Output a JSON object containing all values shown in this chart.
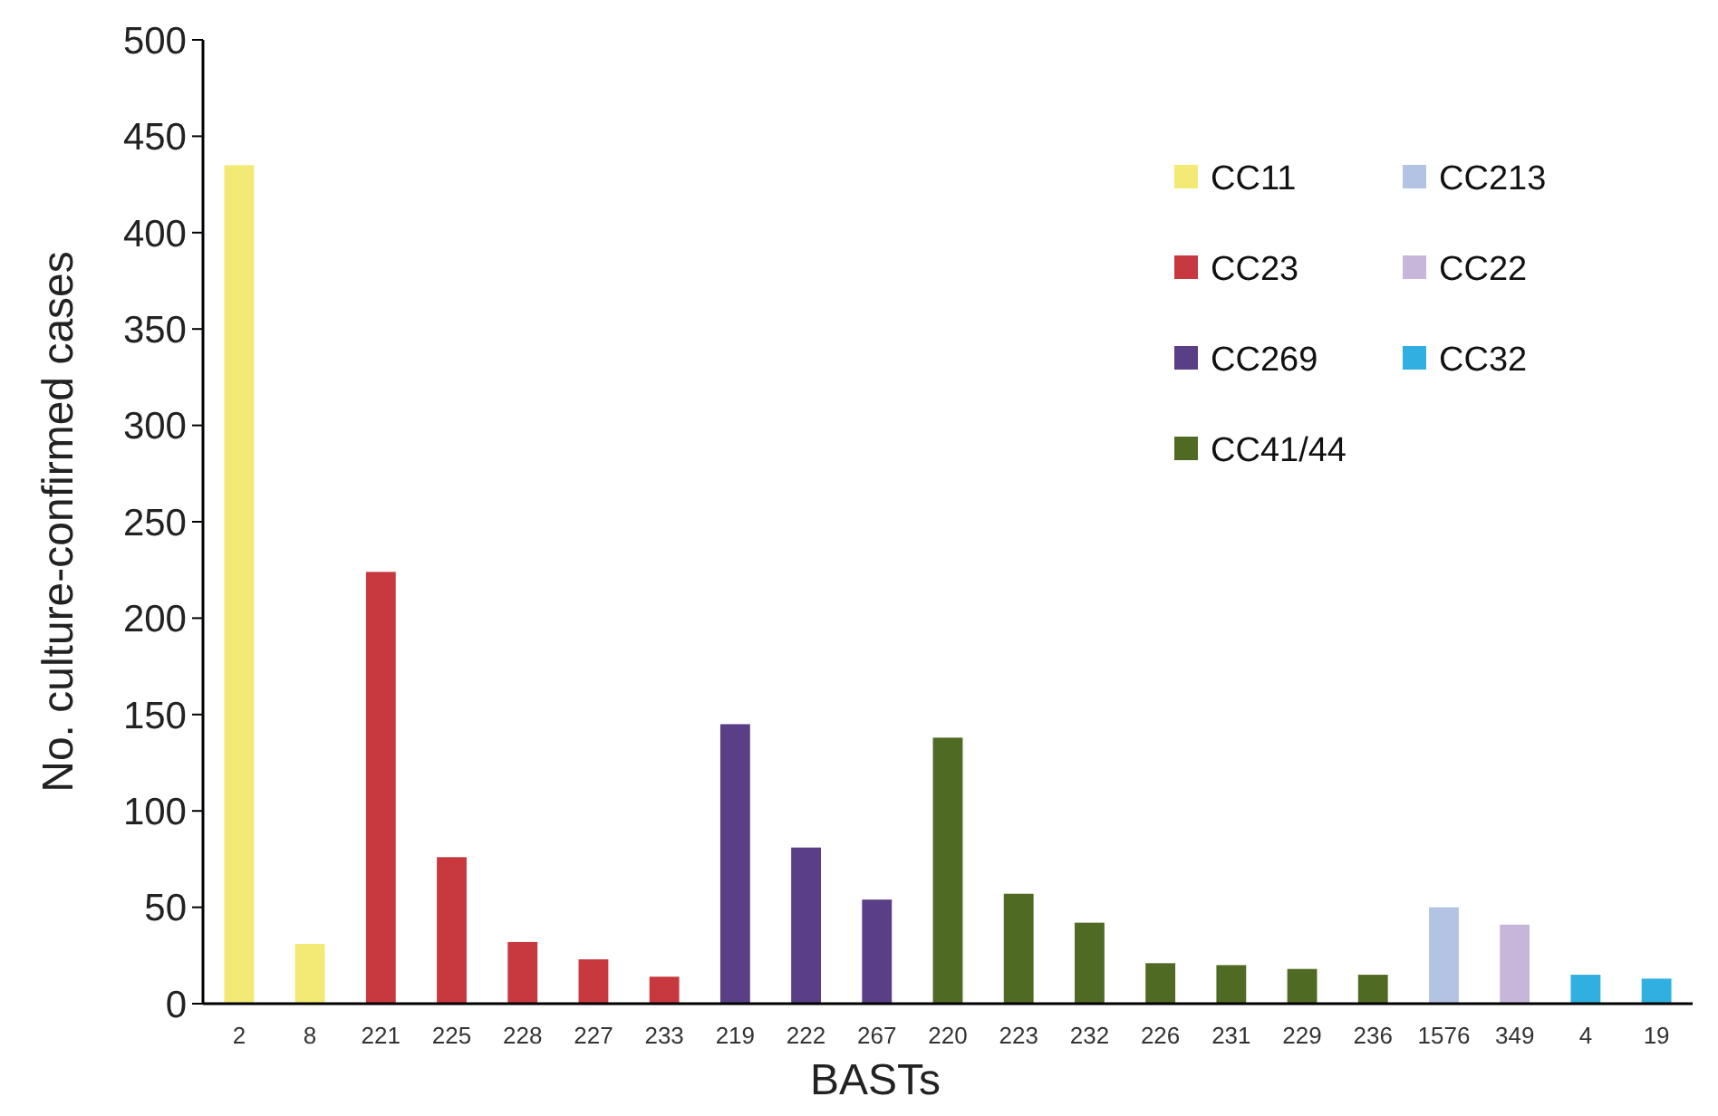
{
  "chart_data": {
    "type": "bar",
    "xlabel": "BASTs",
    "ylabel": "No. culture-confirmed cases",
    "categories": [
      "2",
      "8",
      "221",
      "225",
      "228",
      "227",
      "233",
      "219",
      "222",
      "267",
      "220",
      "223",
      "232",
      "226",
      "231",
      "229",
      "236",
      "1576",
      "349",
      "4",
      "19"
    ],
    "series": [
      {
        "name": "CC11",
        "color": "#f2ea74",
        "values": [
          435,
          31,
          null,
          null,
          null,
          null,
          null,
          null,
          null,
          null,
          null,
          null,
          null,
          null,
          null,
          null,
          null,
          null,
          null,
          null,
          null
        ]
      },
      {
        "name": "CC23",
        "color": "#c8393f",
        "values": [
          null,
          null,
          224,
          76,
          32,
          23,
          14,
          null,
          null,
          null,
          null,
          null,
          null,
          null,
          null,
          null,
          null,
          null,
          null,
          null,
          null
        ]
      },
      {
        "name": "CC269",
        "color": "#5a3e86",
        "values": [
          null,
          null,
          null,
          null,
          null,
          null,
          null,
          145,
          81,
          54,
          null,
          null,
          null,
          null,
          null,
          null,
          null,
          null,
          null,
          null,
          null
        ]
      },
      {
        "name": "CC41/44",
        "color": "#4f6a22",
        "values": [
          null,
          null,
          null,
          null,
          null,
          null,
          null,
          null,
          null,
          null,
          138,
          57,
          42,
          21,
          20,
          18,
          15,
          null,
          null,
          null,
          null
        ]
      },
      {
        "name": "CC213",
        "color": "#b3c3e3",
        "values": [
          null,
          null,
          null,
          null,
          null,
          null,
          null,
          null,
          null,
          null,
          null,
          null,
          null,
          null,
          null,
          null,
          null,
          50,
          null,
          null,
          null
        ]
      },
      {
        "name": "CC22",
        "color": "#c7b6d9",
        "values": [
          null,
          null,
          null,
          null,
          null,
          null,
          null,
          null,
          null,
          null,
          null,
          null,
          null,
          null,
          null,
          null,
          null,
          null,
          41,
          null,
          null
        ]
      },
      {
        "name": "CC32",
        "color": "#2fb0e0",
        "values": [
          null,
          null,
          null,
          null,
          null,
          null,
          null,
          null,
          null,
          null,
          null,
          null,
          null,
          null,
          null,
          null,
          null,
          null,
          null,
          15,
          13
        ]
      }
    ],
    "ylim": [
      0,
      500
    ],
    "yticks": [
      0,
      50,
      100,
      150,
      200,
      250,
      300,
      350,
      400,
      450,
      500
    ],
    "grid": false,
    "legend": "top right"
  }
}
